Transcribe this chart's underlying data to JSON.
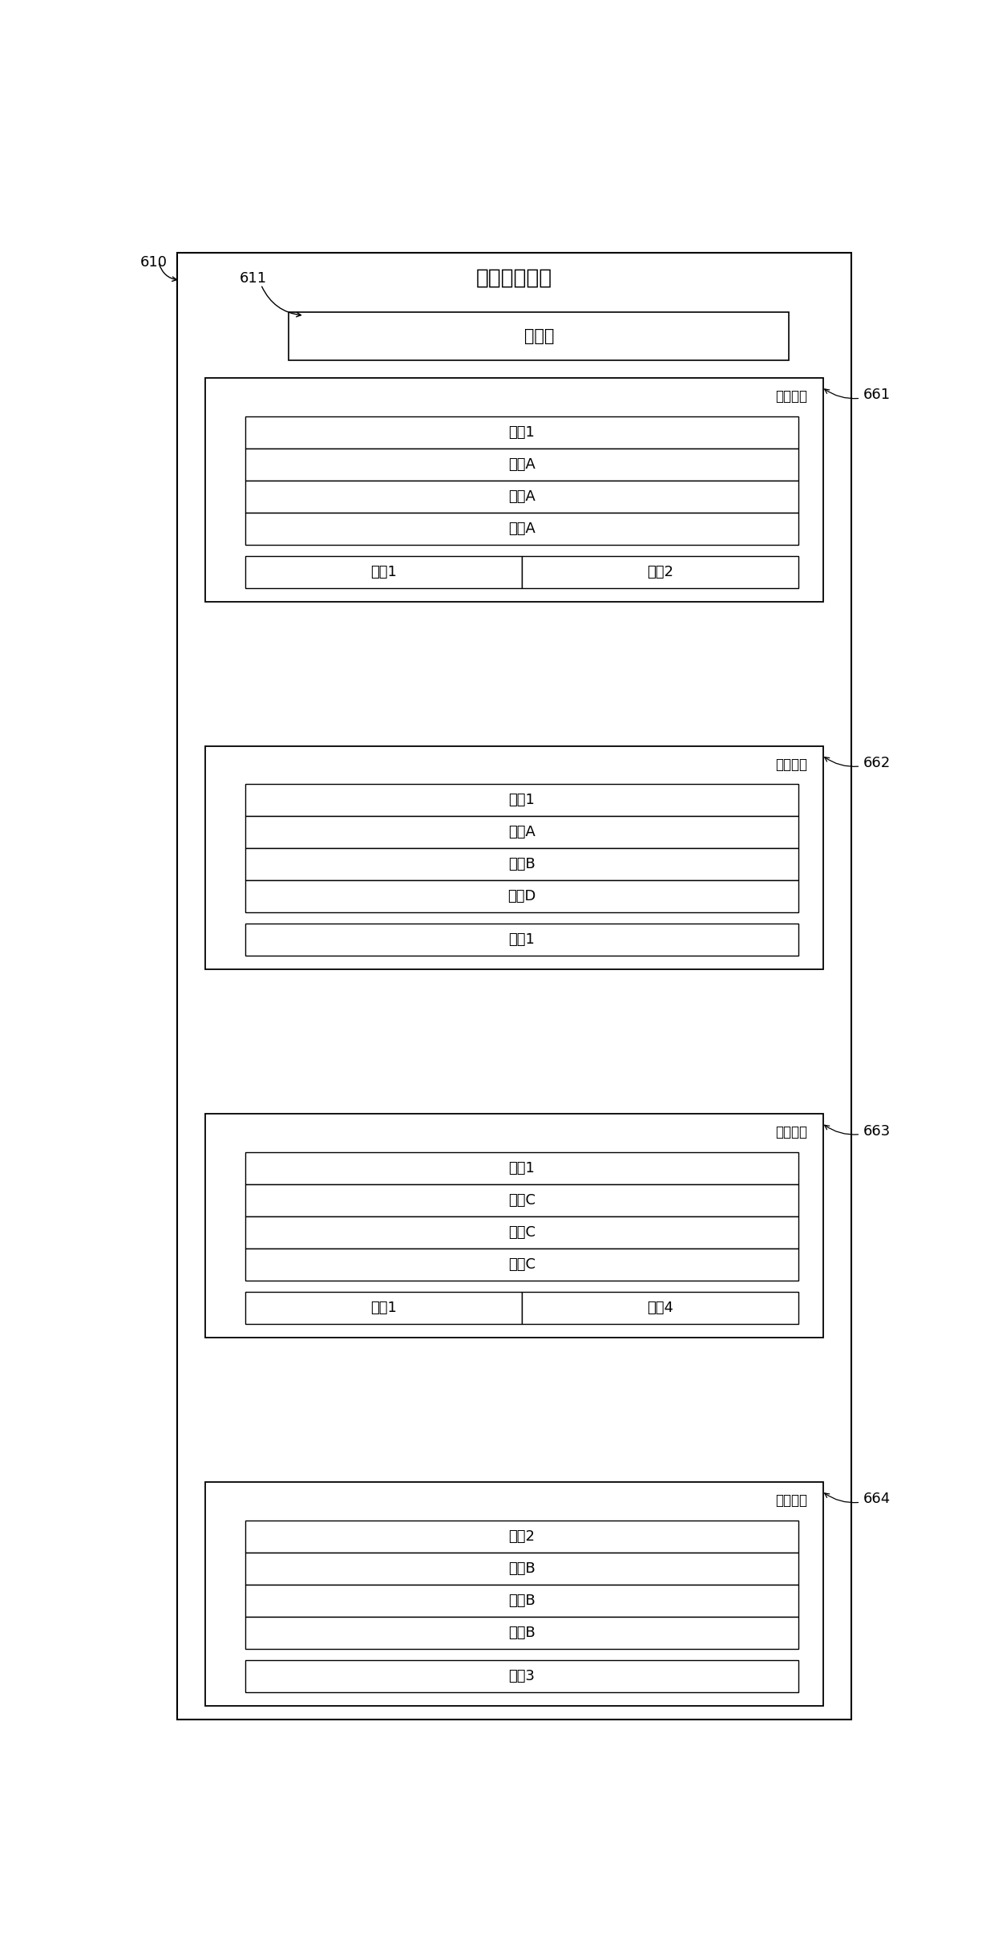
{
  "title": "服务订购信息",
  "title_label": "610",
  "user_label": "611",
  "user_text": "用户甲",
  "subscriptions": [
    {
      "label": "661",
      "name": "第一订购",
      "app": "应用1",
      "org": "机构A",
      "group": "组织A",
      "role": "角色A",
      "functions": [
        "功能1",
        "功能2"
      ]
    },
    {
      "label": "662",
      "name": "第二订购",
      "app": "应用1",
      "org": "机构A",
      "group": "组织B",
      "role": "角色D",
      "functions": [
        "功能1"
      ]
    },
    {
      "label": "663",
      "name": "第三订购",
      "app": "应用1",
      "org": "机构C",
      "group": "组织C",
      "role": "角色C",
      "functions": [
        "功能1",
        "功能4"
      ]
    },
    {
      "label": "664",
      "name": "第四订购",
      "app": "应用2",
      "org": "机构B",
      "group": "组织B",
      "role": "角色B",
      "functions": [
        "功能3"
      ]
    }
  ],
  "bg_color": "#ffffff",
  "box_color": "#ffffff",
  "border_color": "#000000",
  "text_color": "#000000",
  "fig_width": 12.4,
  "fig_height": 24.29,
  "dpi": 100
}
